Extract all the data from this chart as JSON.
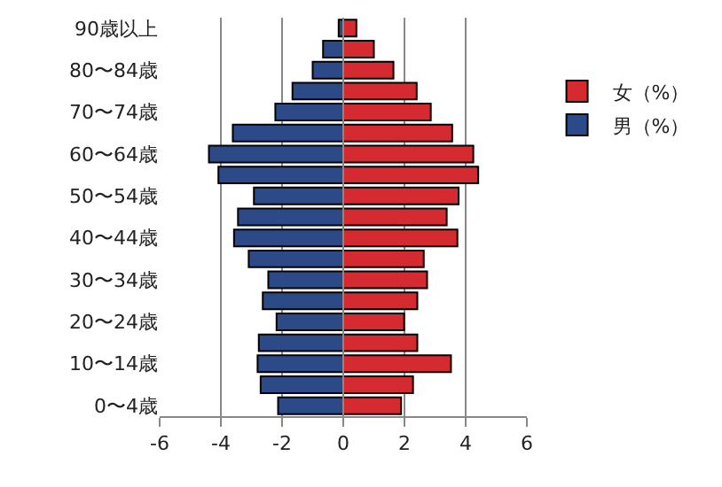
{
  "chart_data": {
    "type": "bar",
    "orientation": "horizontal",
    "stacked": true,
    "categories": [
      "90歳以上",
      null,
      "80〜84歳",
      null,
      "70〜74歳",
      null,
      "60〜64歳",
      null,
      "50〜54歳",
      null,
      "40〜44歳",
      null,
      "30〜34歳",
      null,
      "20〜24歳",
      null,
      "10〜14歳",
      null,
      "0〜4歳"
    ],
    "series": [
      {
        "name": "女（%）",
        "color": "#d42a30",
        "values": [
          0.43,
          1.0,
          1.64,
          2.4,
          2.86,
          3.56,
          4.25,
          4.41,
          3.77,
          3.38,
          3.73,
          2.63,
          2.74,
          2.42,
          1.99,
          2.42,
          3.52,
          2.28,
          1.89
        ]
      },
      {
        "name": "男（%）",
        "color": "#2c4a88",
        "values": [
          -0.15,
          -0.66,
          -1.0,
          -1.66,
          -2.22,
          -3.61,
          -4.39,
          -4.08,
          -2.92,
          -3.44,
          -3.57,
          -3.09,
          -2.45,
          -2.63,
          -2.18,
          -2.76,
          -2.8,
          -2.7,
          -2.13
        ]
      }
    ],
    "xlim": [
      -6,
      6
    ],
    "xticks": [
      -6,
      -4,
      -2,
      0,
      2,
      4,
      6
    ],
    "grid": "x",
    "legend": "right"
  }
}
